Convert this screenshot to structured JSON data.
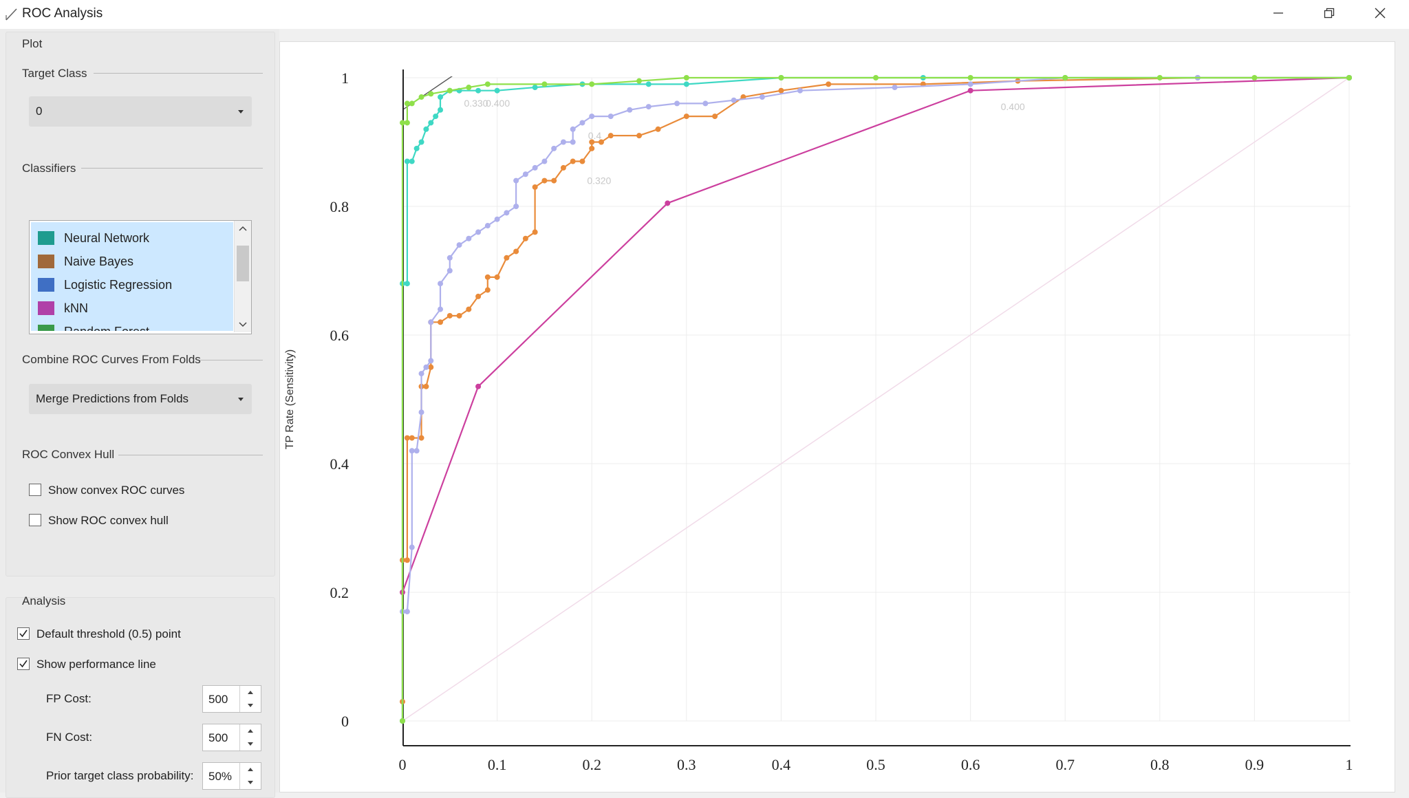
{
  "window": {
    "title": "ROC Analysis",
    "minimize_icon": "minimize-icon",
    "restore_icon": "restore-icon",
    "close_icon": "close-icon"
  },
  "plot_section": {
    "title": "Plot",
    "target_class_label": "Target Class",
    "target_class_value": "0",
    "classifiers_label": "Classifiers",
    "classifiers": [
      {
        "name": "Neural Network",
        "color": "#1f9c8f"
      },
      {
        "name": "Naive Bayes",
        "color": "#a0693a"
      },
      {
        "name": "Logistic Regression",
        "color": "#3f6fc4"
      },
      {
        "name": "kNN",
        "color": "#b040a8"
      },
      {
        "name": "Random Forest",
        "color": "#3a9a4a"
      }
    ],
    "combine_label": "Combine ROC Curves From Folds",
    "combine_value": "Merge Predictions from Folds",
    "convex_hull_label": "ROC Convex Hull",
    "show_convex_curves": {
      "label": "Show convex ROC curves",
      "checked": false
    },
    "show_convex_hull": {
      "label": "Show ROC convex hull",
      "checked": false
    }
  },
  "analysis_section": {
    "title": "Analysis",
    "default_threshold": {
      "label": "Default threshold (0.5) point",
      "checked": true
    },
    "show_performance_line": {
      "label": "Show performance line",
      "checked": true
    },
    "fp_cost_label": "FP Cost:",
    "fp_cost_value": "500",
    "fn_cost_label": "FN Cost:",
    "fn_cost_value": "500",
    "prior_label": "Prior target class probability:",
    "prior_value": "50%"
  },
  "chart_data": {
    "type": "line",
    "ylabel": "TP Rate (Sensitivity)",
    "xlabel": "",
    "xlim": [
      0,
      1
    ],
    "ylim": [
      0,
      1
    ],
    "xticks": [
      "0",
      "0.1",
      "0.2",
      "0.3",
      "0.4",
      "0.5",
      "0.6",
      "0.7",
      "0.8",
      "0.9",
      "1"
    ],
    "yticks": [
      "0",
      "0.2",
      "0.4",
      "0.6",
      "0.8",
      "1"
    ],
    "grid": true,
    "annotations": [
      {
        "text": "0.330",
        "x": 0.065,
        "y": 0.955
      },
      {
        "text": "0.400",
        "x": 0.088,
        "y": 0.955
      },
      {
        "text": "0.4",
        "x": 0.196,
        "y": 0.905
      },
      {
        "text": "0.320",
        "x": 0.195,
        "y": 0.835
      },
      {
        "text": "0.400",
        "x": 0.632,
        "y": 0.95
      }
    ],
    "series": [
      {
        "color": "#cc3f9e",
        "x": [
          0,
          0.08,
          0.28,
          0.6,
          1
        ],
        "y": [
          0.2,
          0.52,
          0.805,
          0.98,
          1
        ]
      },
      {
        "color": "#e98b3a",
        "x": [
          0,
          0,
          0.005,
          0.005,
          0.01,
          0.02,
          0.02,
          0.025,
          0.03,
          0.03,
          0.04,
          0.05,
          0.06,
          0.07,
          0.08,
          0.09,
          0.09,
          0.1,
          0.11,
          0.12,
          0.13,
          0.14,
          0.14,
          0.15,
          0.16,
          0.17,
          0.18,
          0.19,
          0.2,
          0.2,
          0.21,
          0.22,
          0.25,
          0.27,
          0.3,
          0.33,
          0.36,
          0.4,
          0.45,
          0.55,
          0.65,
          0.84,
          1
        ],
        "y": [
          0.03,
          0.25,
          0.25,
          0.44,
          0.44,
          0.44,
          0.52,
          0.52,
          0.55,
          0.62,
          0.62,
          0.63,
          0.63,
          0.64,
          0.66,
          0.67,
          0.69,
          0.69,
          0.72,
          0.73,
          0.75,
          0.76,
          0.83,
          0.84,
          0.84,
          0.86,
          0.87,
          0.87,
          0.89,
          0.9,
          0.9,
          0.91,
          0.91,
          0.92,
          0.94,
          0.94,
          0.97,
          0.98,
          0.99,
          0.99,
          0.995,
          1,
          1
        ]
      },
      {
        "color": "#aeb0ec",
        "x": [
          0,
          0,
          0.005,
          0.01,
          0.01,
          0.015,
          0.02,
          0.02,
          0.025,
          0.03,
          0.03,
          0.04,
          0.04,
          0.05,
          0.05,
          0.06,
          0.07,
          0.08,
          0.09,
          0.1,
          0.11,
          0.12,
          0.12,
          0.13,
          0.14,
          0.15,
          0.16,
          0.17,
          0.18,
          0.18,
          0.19,
          0.2,
          0.22,
          0.24,
          0.26,
          0.29,
          0.32,
          0.35,
          0.38,
          0.42,
          0.52,
          0.6,
          0.7,
          0.84,
          1
        ],
        "y": [
          0,
          0.17,
          0.17,
          0.27,
          0.42,
          0.42,
          0.48,
          0.54,
          0.55,
          0.56,
          0.62,
          0.64,
          0.68,
          0.7,
          0.72,
          0.74,
          0.75,
          0.76,
          0.77,
          0.78,
          0.79,
          0.8,
          0.84,
          0.85,
          0.86,
          0.87,
          0.89,
          0.9,
          0.9,
          0.92,
          0.93,
          0.94,
          0.94,
          0.95,
          0.955,
          0.96,
          0.96,
          0.965,
          0.97,
          0.98,
          0.985,
          0.99,
          1,
          1,
          1
        ]
      },
      {
        "color": "#3ed8c4",
        "x": [
          0,
          0,
          0.005,
          0.005,
          0.01,
          0.015,
          0.02,
          0.025,
          0.03,
          0.035,
          0.04,
          0.04,
          0.05,
          0.06,
          0.08,
          0.1,
          0.14,
          0.19,
          0.26,
          0.3,
          0.4,
          0.55,
          0.7,
          1
        ],
        "y": [
          0,
          0.68,
          0.68,
          0.87,
          0.87,
          0.89,
          0.9,
          0.92,
          0.93,
          0.94,
          0.95,
          0.97,
          0.98,
          0.98,
          0.98,
          0.98,
          0.985,
          0.99,
          0.99,
          0.99,
          1,
          1,
          1,
          1
        ]
      },
      {
        "color": "#8fe04a",
        "x": [
          0,
          0,
          0.005,
          0.005,
          0.01,
          0.02,
          0.03,
          0.05,
          0.07,
          0.09,
          0.15,
          0.2,
          0.25,
          0.3,
          0.4,
          0.5,
          0.6,
          0.7,
          0.8,
          0.9,
          1
        ],
        "y": [
          0,
          0.93,
          0.93,
          0.96,
          0.96,
          0.97,
          0.975,
          0.98,
          0.985,
          0.99,
          0.99,
          0.99,
          0.995,
          1,
          1,
          1,
          1,
          1,
          1,
          1,
          1
        ]
      }
    ]
  }
}
